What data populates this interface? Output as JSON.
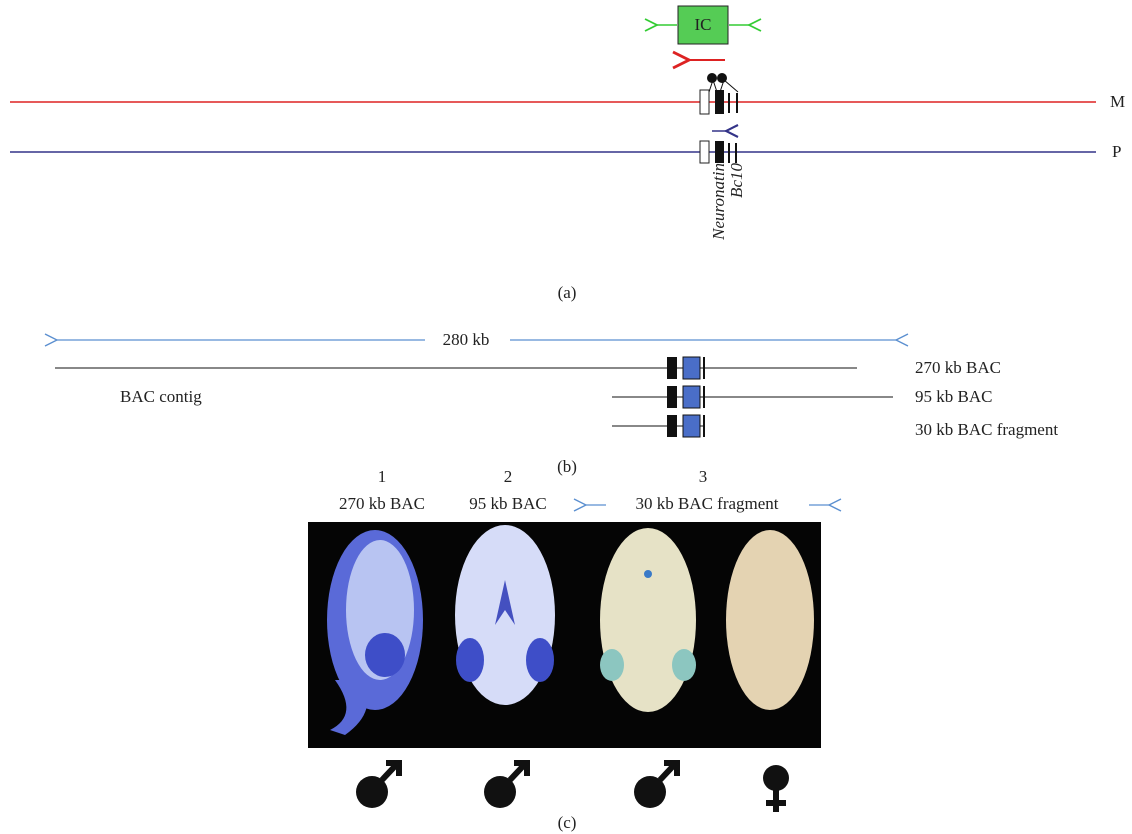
{
  "panel_a": {
    "ic_label": "IC",
    "maternal_label": "M",
    "paternal_label": "P",
    "gene_labels": [
      "Neuronatin",
      "Bc10"
    ],
    "caption": "(a)"
  },
  "panel_b": {
    "span_label": "280 kb",
    "constructs": [
      "270 kb BAC",
      "95 kb BAC",
      "30 kb BAC fragment"
    ],
    "contig_label": "BAC contig",
    "caption": "(b)"
  },
  "panel_c": {
    "columns": [
      {
        "number": "1",
        "label": "270 kb BAC"
      },
      {
        "number": "2",
        "label": "95 kb BAC"
      },
      {
        "number": "3",
        "label": "30 kb BAC fragment"
      }
    ],
    "caption": "(c)"
  }
}
